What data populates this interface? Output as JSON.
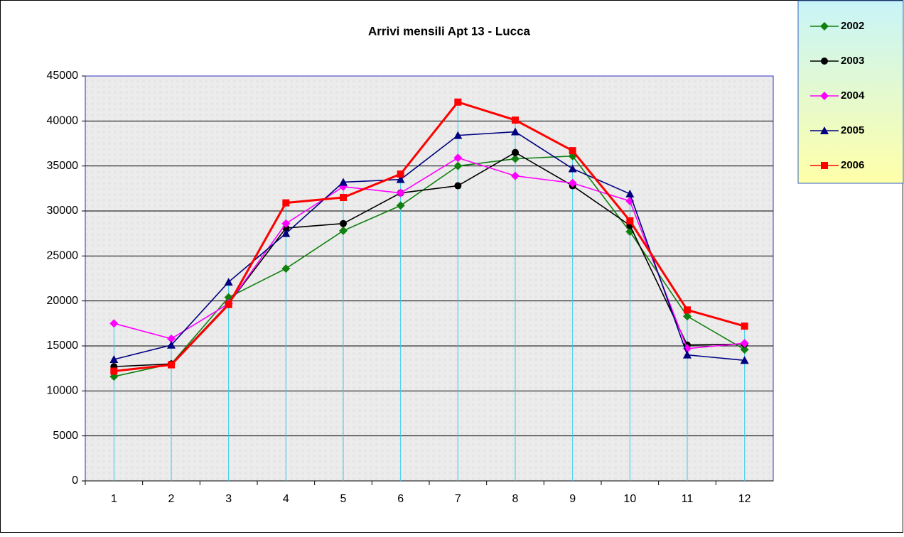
{
  "chart_data": {
    "type": "line",
    "title": "Arrivi mensili Apt 13 - Lucca",
    "categories": [
      1,
      2,
      3,
      4,
      5,
      6,
      7,
      8,
      9,
      10,
      11,
      12
    ],
    "series": [
      {
        "name": "2002",
        "color": "#108010",
        "marker": "diamond",
        "values": [
          11600,
          13000,
          20400,
          23600,
          27800,
          30600,
          35000,
          35800,
          36100,
          27700,
          18300,
          14600
        ]
      },
      {
        "name": "2003",
        "color": "#000000",
        "marker": "circle",
        "values": [
          12700,
          13000,
          19700,
          28100,
          28600,
          32000,
          32800,
          36500,
          32800,
          28400,
          15100,
          15200
        ]
      },
      {
        "name": "2004",
        "color": "#ff00ff",
        "marker": "diamond",
        "values": [
          17500,
          15800,
          19700,
          28600,
          32700,
          32000,
          35900,
          33900,
          33100,
          31100,
          14700,
          15300
        ]
      },
      {
        "name": "2005",
        "color": "#000080",
        "marker": "triangle",
        "values": [
          13500,
          15100,
          22100,
          27500,
          33200,
          33500,
          38400,
          38800,
          34700,
          31900,
          14000,
          13400
        ]
      },
      {
        "name": "2006",
        "color": "#ff0000",
        "marker": "square",
        "values": [
          12200,
          12900,
          19600,
          30900,
          31500,
          34100,
          42100,
          40100,
          36700,
          28900,
          19000,
          17200
        ]
      }
    ],
    "ylim": [
      0,
      45000
    ],
    "yticks": [
      0,
      5000,
      10000,
      15000,
      20000,
      25000,
      30000,
      35000,
      40000,
      45000
    ],
    "grid": true,
    "drop_lines": true,
    "legend": "top-right"
  }
}
